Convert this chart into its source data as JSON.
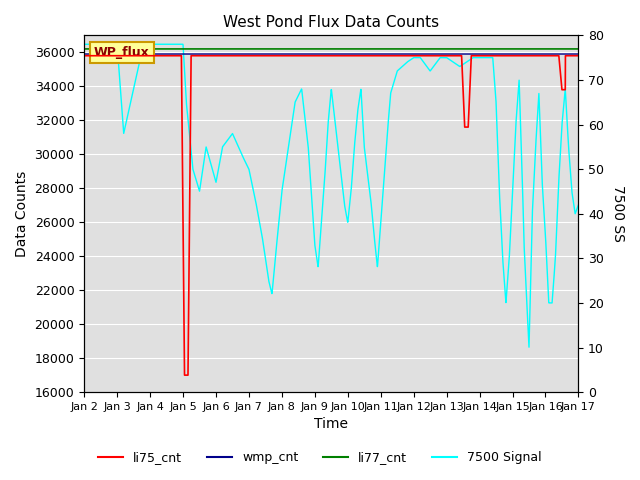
{
  "title": "West Pond Flux Data Counts",
  "xlabel": "Time",
  "ylabel_left": "Data Counts",
  "ylabel_right": "7500 SS",
  "xlim": [
    0,
    15
  ],
  "ylim_left": [
    16000,
    37000
  ],
  "ylim_right": [
    0,
    80
  ],
  "x_tick_labels": [
    "Jan 2",
    "Jan 3",
    "Jan 4",
    "Jan 5",
    "Jan 6",
    "Jan 7",
    "Jan 8",
    "Jan 9",
    "Jan 10",
    "Jan 11",
    "Jan 12",
    "Jan 13",
    "Jan 14",
    "Jan 15",
    "Jan 16",
    "Jan 17"
  ],
  "yticks_left": [
    16000,
    18000,
    20000,
    22000,
    24000,
    26000,
    28000,
    30000,
    32000,
    34000,
    36000
  ],
  "yticks_right": [
    0,
    10,
    20,
    30,
    40,
    50,
    60,
    70,
    80
  ],
  "bg_color": "#e8e8e8",
  "legend_items": [
    "li75_cnt",
    "wmp_cnt",
    "li77_cnt",
    "7500 Signal"
  ],
  "legend_colors": [
    "red",
    "blue",
    "green",
    "cyan"
  ],
  "wp_flux_label": "WP_flux",
  "wp_flux_color": "#ffff99",
  "wp_flux_border": "#cc9900"
}
